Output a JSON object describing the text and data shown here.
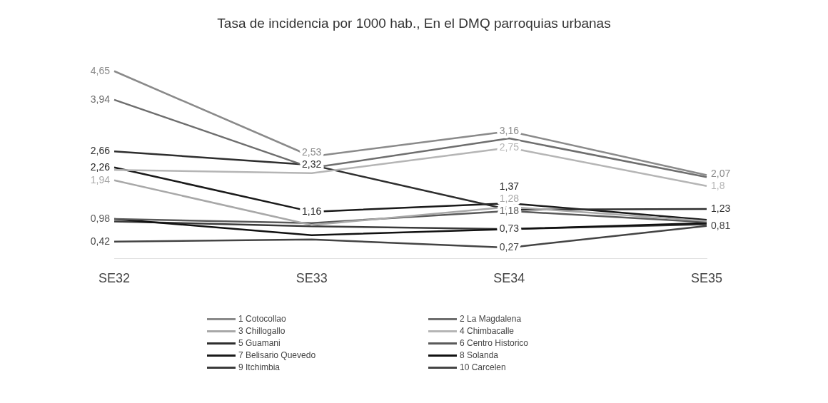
{
  "chart_data": {
    "type": "line",
    "title": "Tasa de incidencia por 1000 hab., En el DMQ parroquias urbanas",
    "categories": [
      "SE32",
      "SE33",
      "SE34",
      "SE35"
    ],
    "series": [
      {
        "name": "1 Cotocollao",
        "color": "#8a8a8a",
        "values": [
          4.65,
          2.53,
          3.16,
          2.07
        ],
        "value_labels": [
          "4,65",
          "2,53",
          "3,16",
          "2,07"
        ]
      },
      {
        "name": "2 La Magdalena",
        "color": "#6e6e6e",
        "values": [
          3.94,
          2.25,
          2.98,
          2.02
        ],
        "value_labels": [
          "3,94",
          null,
          null,
          null
        ]
      },
      {
        "name": "3 Chillogallo",
        "color": "#a8a8a8",
        "values": [
          1.94,
          0.83,
          1.28,
          0.93
        ],
        "value_labels": [
          "1,94",
          null,
          "1,28",
          null
        ]
      },
      {
        "name": "4 Chimbacalle",
        "color": "#b5b5b5",
        "values": [
          2.2,
          2.12,
          2.75,
          1.8
        ],
        "value_labels": [
          null,
          null,
          "2,75",
          "1,8"
        ]
      },
      {
        "name": "5 Guamani",
        "color": "#2e2e2e",
        "values": [
          2.66,
          2.32,
          1.21,
          1.23
        ],
        "value_labels": [
          "2,66",
          "2,32",
          null,
          "1,23"
        ]
      },
      {
        "name": "6 Centro Historico",
        "color": "#5a5a5a",
        "values": [
          0.98,
          0.88,
          1.18,
          0.9
        ],
        "value_labels": [
          "0,98",
          null,
          "1,18",
          null
        ]
      },
      {
        "name": "7 Belisario Quevedo",
        "color": "#1a1a1a",
        "values": [
          2.26,
          1.16,
          1.37,
          0.96
        ],
        "value_labels": [
          "2,26",
          "1,16",
          "1,37",
          null
        ]
      },
      {
        "name": "8 Solanda",
        "color": "#111111",
        "values": [
          0.98,
          0.58,
          0.73,
          0.88
        ],
        "value_labels": [
          null,
          null,
          null,
          null
        ]
      },
      {
        "name": "9 Itchimbia",
        "color": "#3a3a3a",
        "values": [
          0.92,
          0.8,
          0.73,
          0.85
        ],
        "value_labels": [
          null,
          null,
          "0,73",
          null
        ]
      },
      {
        "name": "10 Carcelen",
        "color": "#444444",
        "values": [
          0.42,
          0.47,
          0.27,
          0.81
        ],
        "value_labels": [
          "0,42",
          null,
          "0,27",
          "0,81"
        ]
      }
    ],
    "legend": "bottom",
    "marker": "none",
    "line_style": "solid",
    "grid": false
  }
}
